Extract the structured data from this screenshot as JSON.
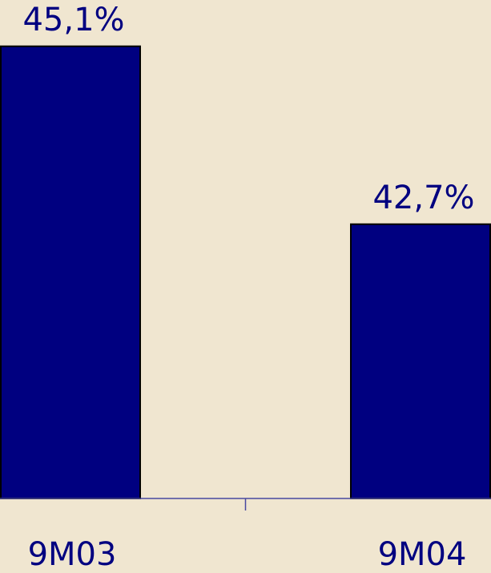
{
  "chart_data": {
    "type": "bar",
    "categories": [
      "9M03",
      "9M04"
    ],
    "values": [
      45.1,
      42.7
    ],
    "value_labels": [
      "45,1%",
      "42,7%"
    ],
    "color": "#000080",
    "ylim": [
      39,
      46
    ]
  }
}
